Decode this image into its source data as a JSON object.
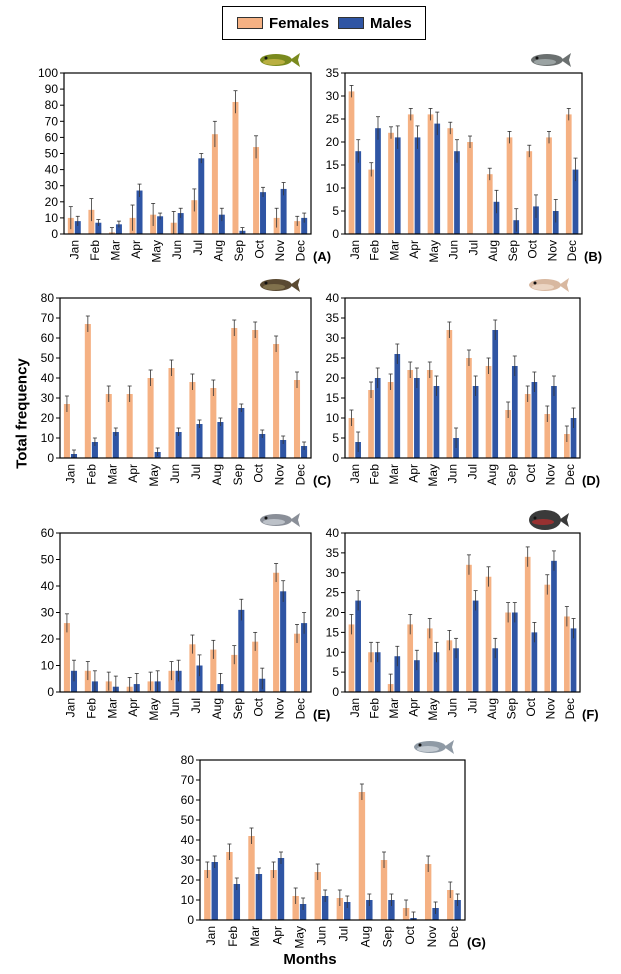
{
  "legend": {
    "females_label": "Females",
    "males_label": "Males",
    "females_color": "#F5B183",
    "males_color": "#2F55A4"
  },
  "ylabel": "Total frequency",
  "xlabel": "Months",
  "chart_data": [
    {
      "type": "bar",
      "panel": "(A)",
      "fish_icon": "green-sunfish-icon",
      "categories": [
        "Jan",
        "Feb",
        "Mar",
        "Apr",
        "May",
        "Jun",
        "Jul",
        "Aug",
        "Sep",
        "Oct",
        "Nov",
        "Dec"
      ],
      "ylim": [
        0,
        100
      ],
      "yticks": [
        0,
        10,
        20,
        30,
        40,
        50,
        60,
        70,
        80,
        90,
        100
      ],
      "series": [
        {
          "name": "Females",
          "values": [
            10,
            15,
            1,
            10,
            12,
            7,
            21,
            62,
            82,
            54,
            10,
            8
          ],
          "errors": [
            7,
            7,
            3,
            8,
            7,
            7,
            7,
            8,
            7,
            7,
            6,
            3
          ]
        },
        {
          "name": "Males",
          "values": [
            8,
            7,
            6,
            27,
            11,
            13,
            47,
            12,
            2,
            26,
            28,
            10
          ],
          "errors": [
            3,
            2,
            2,
            4,
            2,
            3,
            3,
            4,
            2,
            3,
            4,
            3
          ]
        }
      ]
    },
    {
      "type": "bar",
      "panel": "(B)",
      "fish_icon": "catfish-icon",
      "categories": [
        "Jan",
        "Feb",
        "Mar",
        "Apr",
        "May",
        "Jun",
        "Jul",
        "Aug",
        "Sep",
        "Oct",
        "Nov",
        "Dec"
      ],
      "ylim": [
        0,
        35
      ],
      "yticks": [
        0,
        5,
        10,
        15,
        20,
        25,
        30,
        35
      ],
      "series": [
        {
          "name": "Females",
          "values": [
            31,
            14,
            22,
            26,
            26,
            23,
            20,
            13,
            21,
            18,
            21,
            26
          ],
          "errors": [
            1.3,
            1.5,
            1.3,
            1.3,
            1.3,
            1.3,
            1.3,
            1.3,
            1.3,
            1.3,
            1.3,
            1.3
          ]
        },
        {
          "name": "Males",
          "values": [
            18,
            23,
            21,
            21,
            24,
            18,
            0,
            7,
            3,
            6,
            5,
            14
          ],
          "errors": [
            2.5,
            2.5,
            2.5,
            2.5,
            2.5,
            2.5,
            2.5,
            2.5,
            2.5,
            2.5,
            2.5,
            2.5
          ]
        }
      ]
    },
    {
      "type": "bar",
      "panel": "(C)",
      "fish_icon": "brown-fish-icon",
      "categories": [
        "Jan",
        "Feb",
        "Mar",
        "Apr",
        "May",
        "Jun",
        "Jul",
        "Aug",
        "Sep",
        "Oct",
        "Nov",
        "Dec"
      ],
      "ylim": [
        0,
        80
      ],
      "yticks": [
        0,
        10,
        20,
        30,
        40,
        50,
        60,
        70,
        80
      ],
      "series": [
        {
          "name": "Females",
          "values": [
            27,
            67,
            32,
            32,
            40,
            45,
            38,
            35,
            65,
            64,
            57,
            39
          ],
          "errors": [
            4,
            4,
            4,
            4,
            4,
            4,
            4,
            4,
            4,
            4,
            4,
            4
          ]
        },
        {
          "name": "Males",
          "values": [
            2,
            8,
            13,
            0,
            3,
            13,
            17,
            18,
            25,
            12,
            9,
            6
          ],
          "errors": [
            2,
            2,
            2,
            2,
            2,
            2,
            2,
            2,
            2,
            2,
            2,
            2
          ]
        }
      ]
    },
    {
      "type": "bar",
      "panel": "(D)",
      "fish_icon": "pufferfish-icon",
      "categories": [
        "Jan",
        "Feb",
        "Mar",
        "Apr",
        "May",
        "Jun",
        "Jul",
        "Aug",
        "Sep",
        "Oct",
        "Nov",
        "Dec"
      ],
      "ylim": [
        0,
        40
      ],
      "yticks": [
        0,
        5,
        10,
        15,
        20,
        25,
        30,
        35,
        40
      ],
      "series": [
        {
          "name": "Females",
          "values": [
            10,
            17,
            19,
            22,
            22,
            32,
            25,
            23,
            12,
            16,
            11,
            6
          ],
          "errors": [
            2,
            2,
            2,
            2,
            2,
            2,
            2,
            2,
            2,
            2,
            2,
            2
          ]
        },
        {
          "name": "Males",
          "values": [
            4,
            20,
            26,
            20,
            18,
            5,
            18,
            32,
            23,
            19,
            18,
            10
          ],
          "errors": [
            2.5,
            2.5,
            2.5,
            2.5,
            2.5,
            2.5,
            2.5,
            2.5,
            2.5,
            2.5,
            2.5,
            2.5
          ]
        }
      ]
    },
    {
      "type": "bar",
      "panel": "(E)",
      "fish_icon": "silver-fish-icon",
      "categories": [
        "Jan",
        "Feb",
        "Mar",
        "Apr",
        "May",
        "Jun",
        "Jul",
        "Aug",
        "Sep",
        "Oct",
        "Nov",
        "Dec"
      ],
      "ylim": [
        0,
        60
      ],
      "yticks": [
        0,
        10,
        20,
        30,
        40,
        50,
        60
      ],
      "series": [
        {
          "name": "Females",
          "values": [
            26,
            8,
            4,
            2,
            4,
            8,
            18,
            16,
            14,
            19,
            45,
            22
          ],
          "errors": [
            3.5,
            3.5,
            3.5,
            3.5,
            3.5,
            3.5,
            3.5,
            3.5,
            3.5,
            3.5,
            3.5,
            3.5
          ]
        },
        {
          "name": "Males",
          "values": [
            8,
            4,
            2,
            3,
            4,
            8,
            10,
            3,
            31,
            5,
            38,
            26
          ],
          "errors": [
            4,
            4,
            4,
            4,
            4,
            4,
            4,
            4,
            4,
            4,
            4,
            4
          ]
        }
      ]
    },
    {
      "type": "bar",
      "panel": "(F)",
      "fish_icon": "piranha-icon",
      "categories": [
        "Jan",
        "Feb",
        "Mar",
        "Apr",
        "May",
        "Jun",
        "Jul",
        "Aug",
        "Sep",
        "Oct",
        "Nov",
        "Dec"
      ],
      "ylim": [
        0,
        40
      ],
      "yticks": [
        0,
        5,
        10,
        15,
        20,
        25,
        30,
        35,
        40
      ],
      "series": [
        {
          "name": "Females",
          "values": [
            17,
            10,
            2,
            17,
            16,
            13,
            32,
            29,
            20,
            34,
            27,
            19
          ],
          "errors": [
            2.5,
            2.5,
            2.5,
            2.5,
            2.5,
            2.5,
            2.5,
            2.5,
            2.5,
            2.5,
            2.5,
            2.5
          ]
        },
        {
          "name": "Males",
          "values": [
            23,
            10,
            9,
            8,
            10,
            11,
            23,
            11,
            20,
            15,
            33,
            16
          ],
          "errors": [
            2.5,
            2.5,
            2.5,
            2.5,
            2.5,
            2.5,
            2.5,
            2.5,
            2.5,
            2.5,
            2.5,
            2.5
          ]
        }
      ]
    },
    {
      "type": "bar",
      "panel": "(G)",
      "fish_icon": "tilapia-icon",
      "categories": [
        "Jan",
        "Feb",
        "Mar",
        "Apr",
        "May",
        "Jun",
        "Jul",
        "Aug",
        "Sep",
        "Oct",
        "Nov",
        "Dec"
      ],
      "ylim": [
        0,
        80
      ],
      "yticks": [
        0,
        10,
        20,
        30,
        40,
        50,
        60,
        70,
        80
      ],
      "series": [
        {
          "name": "Females",
          "values": [
            25,
            34,
            42,
            25,
            12,
            24,
            11,
            64,
            30,
            6,
            28,
            15
          ],
          "errors": [
            4,
            4,
            4,
            4,
            4,
            4,
            4,
            4,
            4,
            4,
            4,
            4
          ]
        },
        {
          "name": "Males",
          "values": [
            29,
            18,
            23,
            31,
            8,
            12,
            9,
            10,
            10,
            1,
            6,
            10
          ],
          "errors": [
            3,
            3,
            3,
            3,
            3,
            3,
            3,
            3,
            3,
            3,
            3,
            3
          ]
        }
      ]
    }
  ]
}
